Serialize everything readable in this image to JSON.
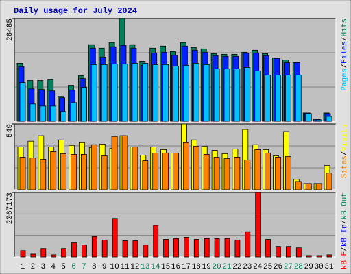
{
  "title": "Daily usage for July 2024",
  "separator": "/",
  "chart_data": [
    {
      "type": "bar",
      "ylim": [
        0,
        26485
      ],
      "yticks": [
        26485
      ],
      "grid_divisions": 3,
      "series": [
        {
          "name": "Hits",
          "color": "#00805c",
          "values": [
            14931,
            10487,
            10487,
            10665,
            6399,
            9243,
            11732,
            19730,
            18842,
            20264,
            26485,
            19730,
            15464,
            18842,
            19375,
            17953,
            20264,
            19019,
            18664,
            17420,
            17242,
            17242,
            17775,
            18308,
            17420,
            16353,
            15820,
            15109,
            2133,
            533,
            2133
          ]
        },
        {
          "name": "Files",
          "color": "#0020ff",
          "values": [
            14042,
            8354,
            8177,
            7821,
            6044,
            7999,
            11021,
            18842,
            16531,
            19197,
            19553,
            18842,
            14398,
            17597,
            17775,
            17064,
            19375,
            18308,
            17775,
            16886,
            16709,
            16709,
            17597,
            17597,
            16886,
            16175,
            15109,
            15109,
            2133,
            533,
            1955
          ]
        },
        {
          "name": "Pages",
          "color": "#00c0ff",
          "values": [
            9954,
            4444,
            3911,
            3911,
            2489,
            4799,
            8710,
            14576,
            14576,
            14753,
            14753,
            14931,
            14931,
            14576,
            14576,
            14220,
            14398,
            14931,
            14576,
            13509,
            13509,
            13509,
            13865,
            12976,
            11909,
            11909,
            11909,
            11909,
            1955,
            356,
            1244
          ]
        }
      ]
    },
    {
      "type": "bar",
      "ylim": [
        0,
        549
      ],
      "yticks": [
        549
      ],
      "grid_divisions": 3,
      "series": [
        {
          "name": "Visits",
          "color": "#ffff00",
          "values": [
            358,
            405,
            451,
            358,
            416,
            370,
            393,
            353,
            381,
            347,
            451,
            358,
            289,
            358,
            335,
            306,
            549,
            416,
            364,
            329,
            301,
            341,
            503,
            376,
            335,
            283,
            486,
            87,
            52,
            52,
            202
          ]
        },
        {
          "name": "Sites",
          "color": "#ff8000",
          "values": [
            272,
            266,
            254,
            318,
            301,
            295,
            295,
            376,
            283,
            445,
            451,
            358,
            243,
            306,
            306,
            306,
            393,
            364,
            295,
            272,
            260,
            272,
            249,
            335,
            306,
            272,
            277,
            69,
            52,
            52,
            139
          ]
        }
      ]
    },
    {
      "type": "bar",
      "ylim": [
        0,
        2067173
      ],
      "yticks": [
        2067173
      ],
      "grid_divisions": 3,
      "categories": [
        "1",
        "2",
        "3",
        "4",
        "5",
        "6",
        "7",
        "8",
        "9",
        "10",
        "11",
        "12",
        "13",
        "14",
        "15",
        "16",
        "17",
        "18",
        "19",
        "20",
        "21",
        "22",
        "23",
        "24",
        "25",
        "26",
        "27",
        "28",
        "29",
        "30",
        "31"
      ],
      "label_colors": [
        "#000000",
        "#000000",
        "#000000",
        "#000000",
        "#000000",
        "#00805c",
        "#00805c",
        "#000000",
        "#000000",
        "#000000",
        "#000000",
        "#000000",
        "#00805c",
        "#00805c",
        "#000000",
        "#000000",
        "#000000",
        "#000000",
        "#000000",
        "#00805c",
        "#00805c",
        "#000000",
        "#000000",
        "#000000",
        "#000000",
        "#000000",
        "#00805c",
        "#00805c",
        "#000000",
        "#000000",
        "#000000"
      ],
      "series": [
        {
          "name": "kB F",
          "color": "#ff0000",
          "values": [
            202221,
            89876,
            269628,
            67407,
            269628,
            449380,
            381973,
            651601,
            539256,
            1235795,
            516787,
            516787,
            381973,
            1011105,
            561725,
            584194,
            629132,
            561725,
            584194,
            584194,
            584194,
            539256,
            808884,
            2067173,
            561725,
            337035,
            337035,
            292097,
            44938,
            44938,
            67407
          ]
        },
        {
          "name": "kB In",
          "color": "#0000ff",
          "values": [
            0,
            0,
            0,
            0,
            0,
            0,
            0,
            0,
            0,
            0,
            0,
            0,
            0,
            0,
            0,
            0,
            0,
            0,
            0,
            0,
            0,
            0,
            0,
            0,
            0,
            0,
            0,
            0,
            0,
            0,
            0
          ]
        },
        {
          "name": "kB Out",
          "color": "#00805c",
          "values": [
            0,
            0,
            0,
            0,
            0,
            0,
            0,
            0,
            0,
            0,
            0,
            0,
            0,
            0,
            0,
            0,
            0,
            0,
            0,
            0,
            0,
            0,
            0,
            0,
            0,
            0,
            0,
            0,
            0,
            0,
            0
          ]
        }
      ]
    }
  ]
}
